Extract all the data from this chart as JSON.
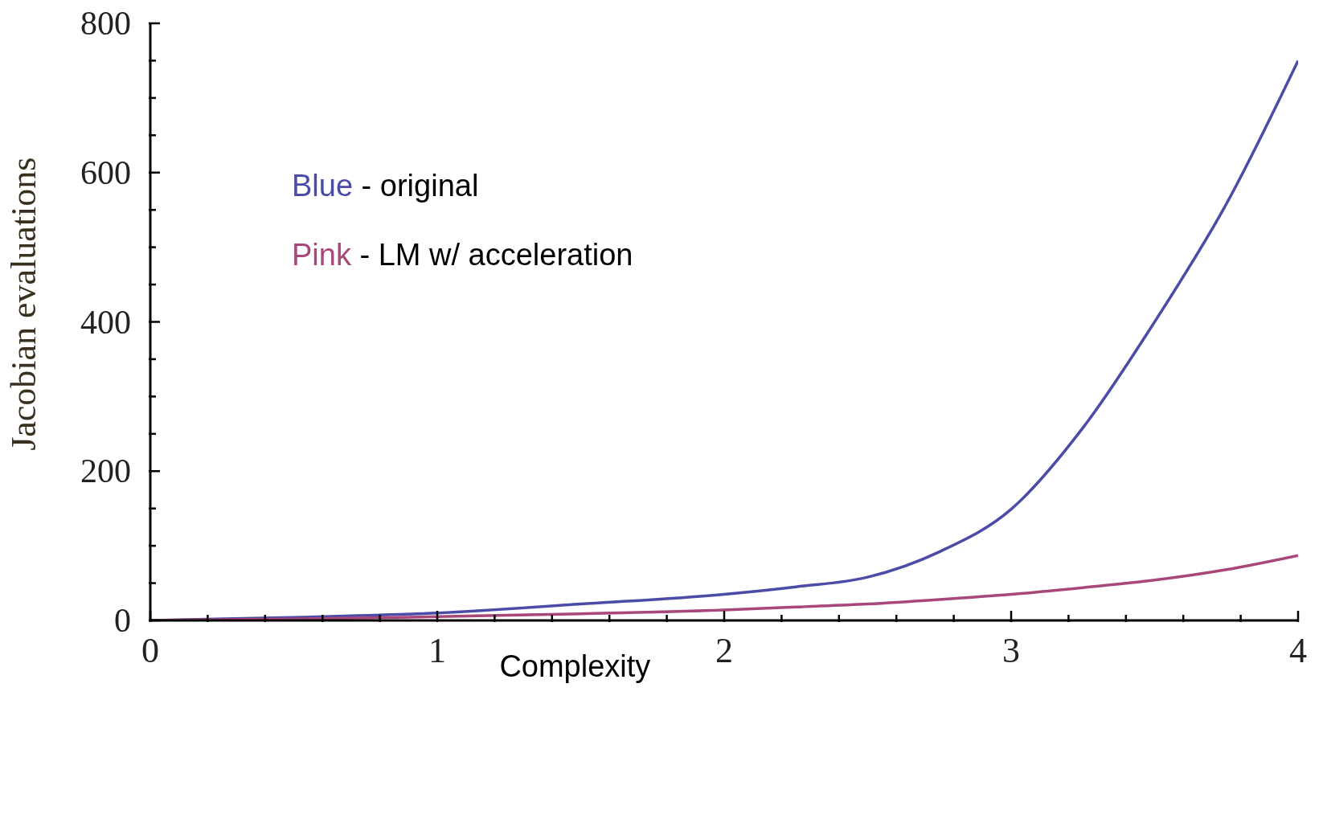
{
  "chart_data": {
    "type": "line",
    "xlabel": "Complexity",
    "ylabel": "Jacobian evaluations",
    "x": [
      0,
      0.5,
      1,
      1.5,
      2,
      2.25,
      2.5,
      2.75,
      3,
      3.25,
      3.5,
      3.75,
      4
    ],
    "series": [
      {
        "name": "Blue - original",
        "color": "#4b4ba8",
        "values": [
          0,
          4,
          10,
          22,
          35,
          45,
          58,
          92,
          149,
          258,
          400,
          558,
          750
        ]
      },
      {
        "name": "Pink - LM w/ acceleration",
        "color": "#a8477a",
        "values": [
          0,
          2,
          5,
          9,
          14,
          18,
          22,
          28,
          35,
          44,
          54,
          68,
          87
        ]
      }
    ],
    "xlim": [
      0,
      4
    ],
    "xticks": [
      0,
      {
        "value": 0.2,
        "label": null
      },
      {
        "value": 0.4,
        "label": null
      },
      {
        "value": 0.6,
        "label": null
      },
      {
        "value": 0.8,
        "label": null
      },
      1,
      {
        "value": 1.2,
        "label": null
      },
      {
        "value": 1.4,
        "label": null
      },
      {
        "value": 1.6,
        "label": null
      },
      {
        "value": 1.8,
        "label": null
      },
      2,
      {
        "value": 2.2,
        "label": null
      },
      {
        "value": 2.4,
        "label": null
      },
      {
        "value": 2.6,
        "label": null
      },
      {
        "value": 2.8,
        "label": null
      },
      3,
      {
        "value": 3.2,
        "label": null
      },
      {
        "value": 3.4,
        "label": null
      },
      {
        "value": 3.6,
        "label": null
      },
      {
        "value": 3.8,
        "label": null
      },
      4
    ],
    "ylim": [
      0,
      800
    ],
    "yticks": [
      0,
      {
        "value": 50,
        "label": null
      },
      {
        "value": 100,
        "label": null
      },
      {
        "value": 150,
        "label": null
      },
      200,
      {
        "value": 250,
        "label": null
      },
      {
        "value": 300,
        "label": null
      },
      {
        "value": 350,
        "label": null
      },
      400,
      {
        "value": 450,
        "label": null
      },
      {
        "value": 500,
        "label": null
      },
      {
        "value": 550,
        "label": null
      },
      600,
      {
        "value": 650,
        "label": null
      },
      {
        "value": 700,
        "label": null
      },
      {
        "value": 750,
        "label": null
      },
      800
    ],
    "grid": false,
    "legend": "top left",
    "marker": "none",
    "line_style": "solid"
  }
}
